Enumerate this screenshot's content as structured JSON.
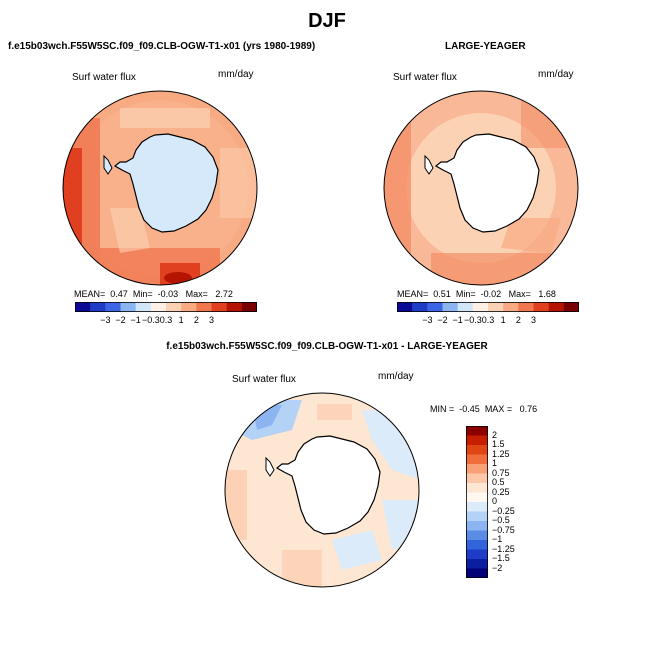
{
  "title": "DJF",
  "panels": [
    {
      "id": "p1",
      "header": "f.e15b03wch.F55W5SC.f09_f09.CLB-OGW-T1-x01 (yrs 1980-1989)",
      "variable": "Surf water flux",
      "units": "mm/day",
      "stats": {
        "mean_label": "MEAN=",
        "mean": "0.47",
        "min_label": "Min=",
        "min": "-0.03",
        "max_label": "Max=",
        "max": "2.72"
      }
    },
    {
      "id": "p2",
      "header": "LARGE-YEAGER",
      "variable": "Surf water flux",
      "units": "mm/day",
      "stats": {
        "mean_label": "MEAN=",
        "mean": "0.51",
        "min_label": "Min=",
        "min": "-0.02",
        "max_label": "Max=",
        "max": "1.68"
      }
    },
    {
      "id": "p3",
      "header": "f.e15b03wch.F55W5SC.f09_f09.CLB-OGW-T1-x01 - LARGE-YEAGER",
      "variable": "Surf water flux",
      "units": "mm/day",
      "stats": {
        "min_label": "MIN =",
        "min": "-0.45",
        "max_label": "MAX =",
        "max": "0.76"
      }
    }
  ],
  "chart_data": [
    {
      "type": "heatmap",
      "title": "f.e15b03wch.F55W5SC.f09_f09.CLB-OGW-T1-x01 (yrs 1980-1989)",
      "variable": "Surf water flux",
      "units": "mm/day",
      "mean": 0.47,
      "min": -0.03,
      "max": 2.72,
      "colorbar_levels": [
        -3,
        -2,
        -1,
        -0.3,
        0.3,
        1,
        2,
        3
      ],
      "colorbar_tick_labels": [
        "-3",
        "-2",
        "-1",
        "-0.3",
        "0.3",
        "1",
        "2",
        "3"
      ]
    },
    {
      "type": "heatmap",
      "title": "LARGE-YEAGER",
      "variable": "Surf water flux",
      "units": "mm/day",
      "mean": 0.51,
      "min": -0.02,
      "max": 1.68,
      "colorbar_levels": [
        -3,
        -2,
        -1,
        -0.3,
        0.3,
        1,
        2,
        3
      ],
      "colorbar_tick_labels": [
        "-3",
        "-2",
        "-1",
        "-0.3",
        "0.3",
        "1",
        "2",
        "3"
      ]
    },
    {
      "type": "heatmap",
      "title": "f.e15b03wch.F55W5SC.f09_f09.CLB-OGW-T1-x01 - LARGE-YEAGER",
      "variable": "Surf water flux",
      "units": "mm/day",
      "min": -0.45,
      "max": 0.76,
      "colorbar_levels": [
        2,
        1.5,
        1.25,
        1,
        0.75,
        0.5,
        0.25,
        0,
        -0.25,
        -0.5,
        -0.75,
        -1,
        -1.25,
        -1.5,
        -2
      ],
      "colorbar_tick_labels": [
        "2",
        "1.5",
        "1.25",
        "1",
        "0.75",
        "0.5",
        "0.25",
        "0",
        "−0.25",
        "−0.5",
        "−0.75",
        "−1",
        "−1.25",
        "−1.5",
        "−2"
      ]
    }
  ],
  "colors": {
    "bar1": [
      "#0a0a96",
      "#1e3cc8",
      "#3c64e6",
      "#8cb4f0",
      "#d2e6fa",
      "#fff0e6",
      "#fcd2b4",
      "#f8aa82",
      "#f07850",
      "#e04020",
      "#b41400",
      "#780000"
    ],
    "bar3": [
      "#8c0000",
      "#c81e00",
      "#e04614",
      "#f06e3c",
      "#f8a078",
      "#fcc8a8",
      "#fde6d2",
      "#fff8f0",
      "#dcebfa",
      "#b4d2f5",
      "#8cb4f0",
      "#5a8ce6",
      "#3264dc",
      "#1e3cc8",
      "#0a1ea0",
      "#000078"
    ],
    "land": "#d6e9fb",
    "coast": "#000000"
  }
}
